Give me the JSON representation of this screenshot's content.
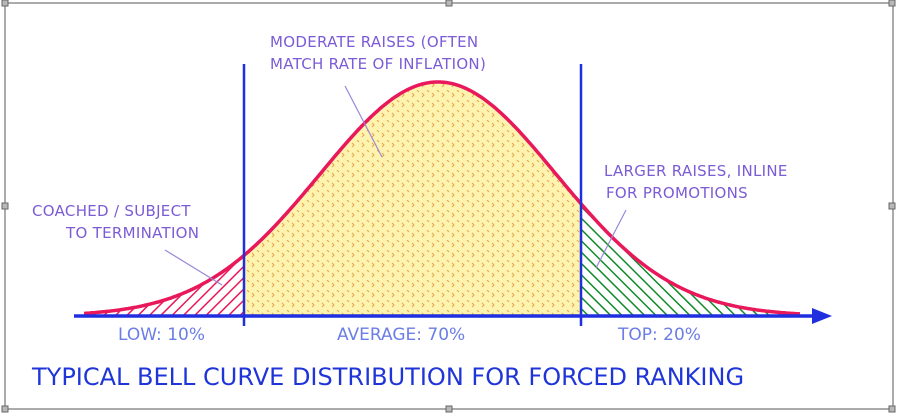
{
  "annotations": {
    "middle_line1": "MODERATE RAISES (OFTEN",
    "middle_line2": "MATCH RATE OF INFLATION)",
    "left_line1": "COACHED / SUBJECT",
    "left_line2": "TO TERMINATION",
    "right_line1": "LARGER RAISES, INLINE",
    "right_line2": "FOR PROMOTIONS"
  },
  "segments": {
    "low": "LOW: 10%",
    "average": "AVERAGE: 70%",
    "top": "TOP: 20%"
  },
  "title": "TYPICAL BELL CURVE DISTRIBUTION FOR FORCED RANKING",
  "colors": {
    "curve": "#e8185a",
    "axis": "#1f2fe0",
    "divider": "#1f2fe0",
    "low_fill": "#e8185a",
    "average_fill": "#fff0a8",
    "average_dots": "#e6b04a",
    "top_fill": "#118a2a",
    "annotation_text": "#7b5bd6",
    "title_text": "#1f35d8"
  }
}
